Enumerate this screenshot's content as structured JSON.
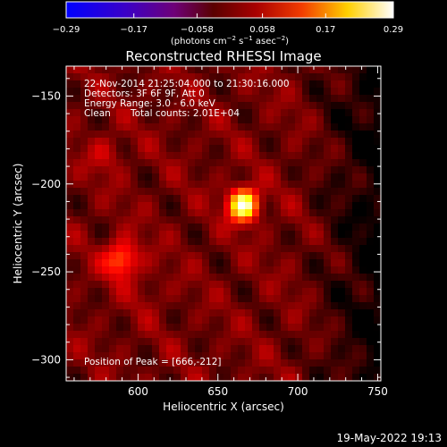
{
  "colorbar": {
    "ticks": [
      {
        "value": -0.29,
        "label": "−0.29"
      },
      {
        "value": -0.17,
        "label": "−0.17"
      },
      {
        "value": -0.058,
        "label": "−0.058"
      },
      {
        "value": 0.058,
        "label": "0.058"
      },
      {
        "value": 0.17,
        "label": "0.17"
      },
      {
        "value": 0.29,
        "label": "0.29"
      }
    ],
    "range": [
      -0.29,
      0.29
    ],
    "units_parts": [
      "(photons cm",
      "−2",
      " s",
      "−1",
      " asec",
      "−2",
      ")"
    ]
  },
  "info": {
    "time_range": "22-Nov-2014 21:25:04.000 to 21:30:16.000",
    "detectors": "Detectors: 3F 6F 9F, Att 0",
    "energy": "Energy Range: 3.0 - 6.0 keV",
    "clean": "Clean",
    "counts": "Total counts: 2.01E+04",
    "peak": "Position of Peak = [666,-212]"
  },
  "footer": {
    "timestamp": "19-May-2022 19:13"
  },
  "chart_data": {
    "type": "heatmap",
    "title": "Reconstructed RHESSI Image",
    "xlabel": "Heliocentric X (arcsec)",
    "ylabel": "Heliocentric Y (arcsec)",
    "xlim": [
      555,
      752
    ],
    "ylim": [
      -312,
      -133
    ],
    "x_ticks": [
      {
        "value": 600,
        "label": "600"
      },
      {
        "value": 650,
        "label": "650"
      },
      {
        "value": 700,
        "label": "700"
      },
      {
        "value": 750,
        "label": "750"
      }
    ],
    "y_ticks": [
      {
        "value": -150,
        "label": "−150"
      },
      {
        "value": -200,
        "label": "−200"
      },
      {
        "value": -250,
        "label": "−250"
      },
      {
        "value": -300,
        "label": "−300"
      }
    ],
    "colormap": "hot (black-red-yellow-white)",
    "color_range": [
      -0.29,
      0.29
    ],
    "sources": [
      {
        "x": 666,
        "y": -212,
        "intensity": 0.29
      },
      {
        "x": 590,
        "y": -243,
        "intensity": 0.17
      },
      {
        "x": 580,
        "y": -183,
        "intensity": 0.09
      },
      {
        "x": 607,
        "y": -262,
        "intensity": 0.07
      }
    ]
  }
}
